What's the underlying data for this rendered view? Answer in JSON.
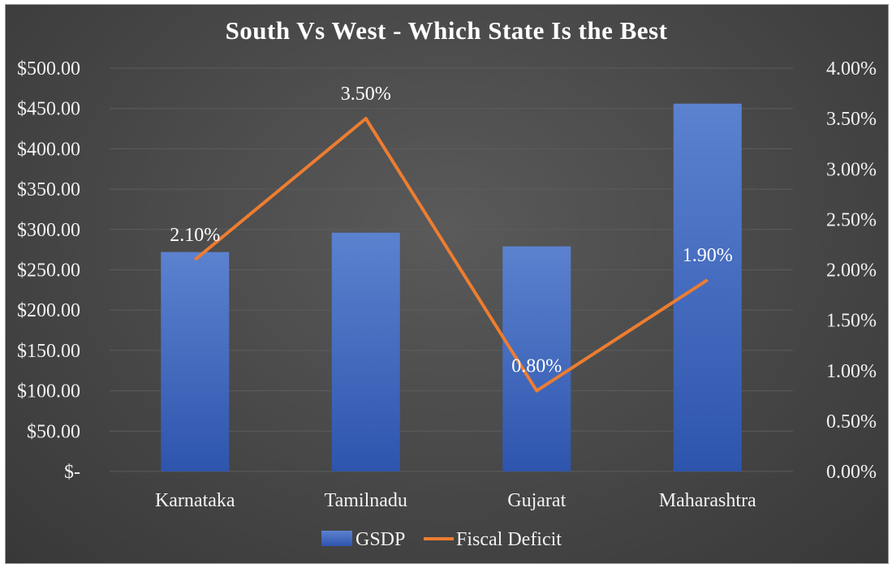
{
  "chart_data": {
    "type": "bar",
    "title": "South Vs West - Which State Is the Best",
    "categories": [
      "Karnataka",
      "Tamilnadu",
      "Gujarat",
      "Maharashtra"
    ],
    "series": [
      {
        "name": "GSDP",
        "type": "bar",
        "axis": "left",
        "values": [
          272,
          296,
          279,
          456
        ],
        "color": "#4472c4"
      },
      {
        "name": "Fiscal Deficit",
        "type": "line",
        "axis": "right",
        "values": [
          0.021,
          0.035,
          0.008,
          0.019
        ],
        "labels": [
          "2.10%",
          "3.50%",
          "0.80%",
          "1.90%"
        ],
        "color": "#ed7d31"
      }
    ],
    "y_left": {
      "range": [
        0,
        500
      ],
      "ticks": [
        "$-",
        "$50.00",
        "$100.00",
        "$150.00",
        "$200.00",
        "$250.00",
        "$300.00",
        "$350.00",
        "$400.00",
        "$450.00",
        "$500.00"
      ]
    },
    "y_right": {
      "range": [
        0,
        0.04
      ],
      "ticks": [
        "0.00%",
        "0.50%",
        "1.00%",
        "1.50%",
        "2.00%",
        "2.50%",
        "3.00%",
        "3.50%",
        "4.00%"
      ]
    },
    "grid": true,
    "legend": "bottom",
    "background": "#474747"
  }
}
